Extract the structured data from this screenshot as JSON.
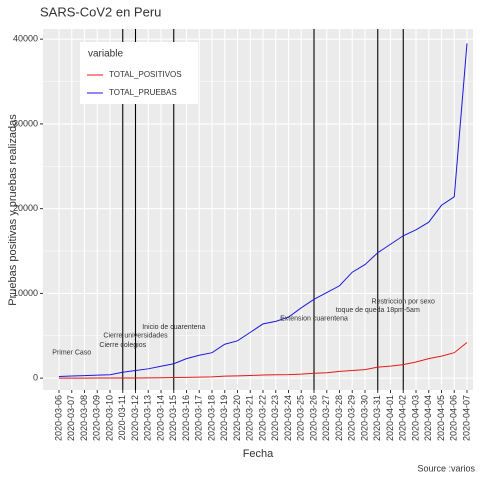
{
  "chart_data": {
    "type": "line",
    "title": "SARS-CoV2 en Peru",
    "x_label": "Fecha",
    "y_label": "Pruebas positivas y pruebas realizadas",
    "caption": "Source :varios",
    "legend_title": "variable",
    "categories": [
      "2020-03-06",
      "2020-03-07",
      "2020-03-08",
      "2020-03-09",
      "2020-03-10",
      "2020-03-11",
      "2020-03-12",
      "2020-03-13",
      "2020-03-14",
      "2020-03-15",
      "2020-03-16",
      "2020-03-17",
      "2020-03-18",
      "2020-03-19",
      "2020-03-20",
      "2020-03-21",
      "2020-03-22",
      "2020-03-23",
      "2020-03-24",
      "2020-03-25",
      "2020-03-26",
      "2020-03-27",
      "2020-03-28",
      "2020-03-29",
      "2020-03-30",
      "2020-03-31",
      "2020-04-01",
      "2020-04-02",
      "2020-04-03",
      "2020-04-04",
      "2020-04-05",
      "2020-04-06",
      "2020-04-07"
    ],
    "series": [
      {
        "name": "TOTAL_POSITIVOS",
        "color": "#e41a1c",
        "values": [
          1,
          6,
          7,
          9,
          11,
          17,
          22,
          38,
          43,
          71,
          86,
          117,
          145,
          234,
          263,
          318,
          363,
          395,
          416,
          480,
          580,
          635,
          800,
          900,
          1000,
          1300,
          1414,
          1595,
          1900,
          2300,
          2600,
          3000,
          4200
        ]
      },
      {
        "name": "TOTAL_PRUEBAS",
        "color": "#1a1adc",
        "values": [
          200,
          250,
          300,
          350,
          400,
          700,
          900,
          1100,
          1400,
          1700,
          2300,
          2700,
          3000,
          4000,
          4400,
          5400,
          6400,
          6700,
          7200,
          8300,
          9300,
          10100,
          10900,
          12500,
          13400,
          14800,
          15800,
          16800,
          17500,
          18400,
          20400,
          21400,
          39500
        ]
      }
    ],
    "vlines": [
      "2020-03-11",
      "2020-03-12",
      "2020-03-15",
      "2020-03-26",
      "2020-03-31",
      "2020-04-02"
    ],
    "annotations": [
      {
        "text": "Primer Caso",
        "x": "2020-03-07",
        "y": 3000
      },
      {
        "text": "Cierre colegios",
        "x": "2020-03-11",
        "y": 3900
      },
      {
        "text": "Cierre universidades",
        "x": "2020-03-12",
        "y": 5000
      },
      {
        "text": "Inicio de cuarentena",
        "x": "2020-03-15",
        "y": 6000
      },
      {
        "text": "Extension cuarentena",
        "x": "2020-03-26",
        "y": 7000
      },
      {
        "text": "toque de queda 18pm-5am",
        "x": "2020-03-31",
        "y": 8000
      },
      {
        "text": "Restriccion por sexo",
        "x": "2020-04-02",
        "y": 9000
      }
    ],
    "ylim": [
      -1400,
      41200
    ],
    "yticks": [
      0,
      10000,
      20000,
      30000,
      40000
    ],
    "grid": true
  }
}
